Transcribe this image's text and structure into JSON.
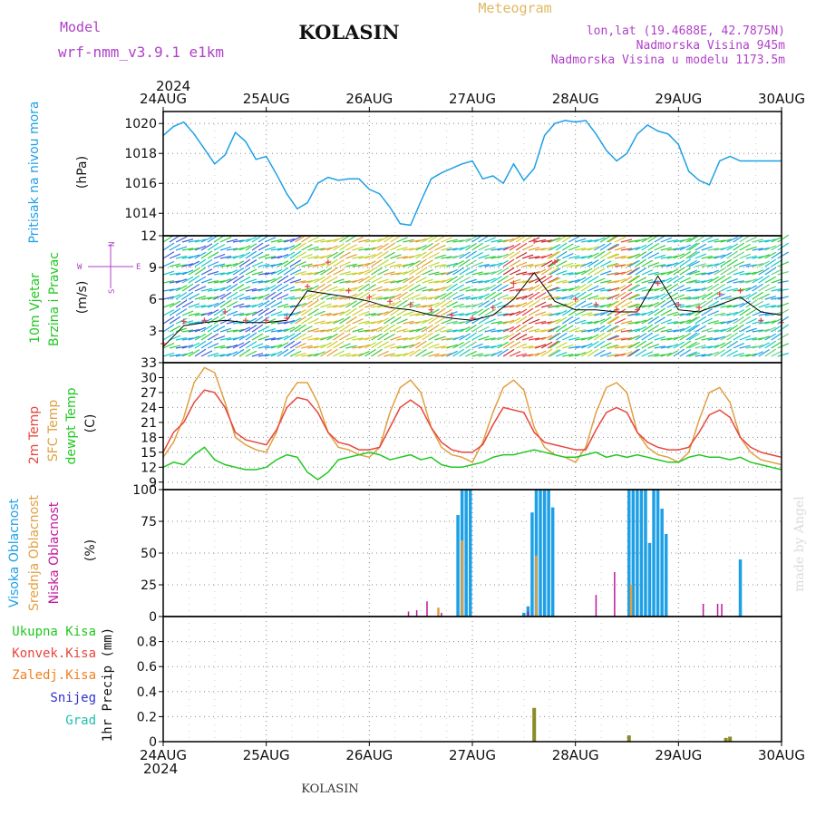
{
  "header": {
    "model_label": "Model",
    "model_name": "wrf-nmm_v3.9.1  e1km",
    "station": "KOLASIN",
    "meteogram": "Meteogram",
    "lonlat": "lon,lat (19.4688E, 42.7875N)",
    "altitude": "Nadmorska Visina 945m",
    "altitude_model": "Nadmorska Visina u modelu 1173.5m",
    "year": "2024",
    "footer_station": "KOLASIN",
    "watermark": "made by Angel"
  },
  "colors": {
    "pressure": "#1ea0e6",
    "temp2m": "#e8463c",
    "sfc": "#e0a040",
    "dewpt": "#22c822",
    "high_cloud": "#1ea0e6",
    "mid_cloud": "#e0a040",
    "low_cloud": "#c0189c",
    "total_precip": "#22c822",
    "conv_precip": "#e8463c",
    "frz_precip": "#f08020",
    "snow": "#3030d0",
    "hail": "#20c0b0",
    "model_purple": "#b040c8"
  },
  "chart_data": [
    {
      "type": "line",
      "panel": "pressure",
      "title": "",
      "ylabel": [
        "Pritisak na nivou mora",
        "(hPa)"
      ],
      "ylim": [
        1012.5,
        1020.8
      ],
      "yticks": [
        1014,
        1016,
        1018,
        1020
      ],
      "grid": true,
      "x_categories": [
        "24AUG",
        "25AUG",
        "26AUG",
        "27AUG",
        "28AUG",
        "29AUG",
        "30AUG"
      ],
      "x": [
        0,
        0.1,
        0.2,
        0.3,
        0.4,
        0.5,
        0.6,
        0.7,
        0.8,
        0.9,
        1.0,
        1.1,
        1.2,
        1.3,
        1.4,
        1.5,
        1.6,
        1.7,
        1.8,
        1.9,
        2.0,
        2.1,
        2.2,
        2.3,
        2.4,
        2.5,
        2.6,
        2.7,
        2.8,
        2.9,
        3.0,
        3.1,
        3.2,
        3.3,
        3.4,
        3.5,
        3.6,
        3.7,
        3.8,
        3.9,
        4.0,
        4.1,
        4.2,
        4.3,
        4.4,
        4.5,
        4.6,
        4.7,
        4.8,
        4.9,
        5.0,
        5.1,
        5.2,
        5.3,
        5.4,
        5.5,
        5.6,
        5.7,
        5.8,
        5.9,
        6.0
      ],
      "series": [
        {
          "values": [
            1019.2,
            1019.8,
            1020.1,
            1019.3,
            1018.3,
            1017.3,
            1017.9,
            1019.4,
            1018.8,
            1017.6,
            1017.8,
            1016.6,
            1015.3,
            1014.3,
            1014.7,
            1016.0,
            1016.4,
            1016.2,
            1016.3,
            1016.3,
            1015.6,
            1015.3,
            1014.4,
            1013.3,
            1013.2,
            1014.8,
            1016.3,
            1016.7,
            1017.0,
            1017.3,
            1017.5,
            1016.3,
            1016.5,
            1016.0,
            1017.3,
            1016.2,
            1017.0,
            1019.2,
            1020.0,
            1020.2,
            1020.1,
            1020.2,
            1019.3,
            1018.2,
            1017.5,
            1018.0,
            1019.3,
            1019.9,
            1019.5,
            1019.3,
            1018.6,
            1016.8,
            1016.2,
            1015.9,
            1017.5,
            1017.8,
            1017.5,
            1017.5,
            1017.5,
            1017.5,
            1017.5
          ]
        }
      ]
    },
    {
      "type": "line",
      "panel": "wind",
      "title": "",
      "ylabel": [
        "10m Vjetar",
        "Brzina i Pravac",
        "(m/s)"
      ],
      "ylim": [
        0,
        12
      ],
      "yticks": [
        3,
        6,
        9,
        12
      ],
      "grid": true,
      "x": [
        0,
        0.2,
        0.4,
        0.6,
        0.8,
        1.0,
        1.2,
        1.4,
        1.6,
        1.8,
        2.0,
        2.2,
        2.4,
        2.6,
        2.8,
        3.0,
        3.2,
        3.4,
        3.6,
        3.8,
        4.0,
        4.2,
        4.4,
        4.6,
        4.8,
        5.0,
        5.2,
        5.4,
        5.6,
        5.8,
        6.0
      ],
      "series": [
        {
          "name": "speed",
          "values": [
            1.5,
            3.5,
            3.8,
            4.0,
            3.8,
            3.8,
            4.0,
            6.8,
            6.5,
            6.2,
            5.8,
            5.2,
            5.0,
            4.5,
            4.2,
            4.0,
            4.5,
            6.0,
            8.5,
            5.8,
            5.0,
            5.0,
            4.8,
            4.8,
            8.2,
            5.0,
            4.8,
            5.5,
            6.2,
            4.8,
            4.5
          ]
        },
        {
          "name": "gust",
          "values": [
            1.8,
            3.9,
            4.0,
            4.8,
            4.0,
            4.0,
            4.2,
            7.2,
            9.5,
            6.8,
            6.2,
            5.8,
            5.5,
            5.0,
            4.5,
            4.2,
            5.2,
            7.5,
            11.5,
            9.5,
            6.0,
            5.5,
            5.0,
            5.0,
            7.5,
            5.5,
            5.2,
            6.5,
            6.8,
            4.0,
            3.8
          ]
        }
      ],
      "compass": {
        "n": "N",
        "s": "S",
        "e": "E",
        "w": "W"
      }
    },
    {
      "type": "line",
      "panel": "temperature",
      "title": "",
      "ylabel": [
        "2m Temp",
        "SFC Temp",
        "dewpt Temp",
        "(C)"
      ],
      "ylim": [
        7.5,
        33
      ],
      "yticks": [
        9,
        12,
        15,
        18,
        21,
        24,
        27,
        30,
        33
      ],
      "grid": true,
      "x": [
        0,
        0.1,
        0.2,
        0.3,
        0.4,
        0.5,
        0.6,
        0.7,
        0.8,
        0.9,
        1.0,
        1.1,
        1.2,
        1.3,
        1.4,
        1.5,
        1.6,
        1.7,
        1.8,
        1.9,
        2.0,
        2.1,
        2.2,
        2.3,
        2.4,
        2.5,
        2.6,
        2.7,
        2.8,
        2.9,
        3.0,
        3.1,
        3.2,
        3.3,
        3.4,
        3.5,
        3.6,
        3.7,
        3.8,
        3.9,
        4.0,
        4.1,
        4.2,
        4.3,
        4.4,
        4.5,
        4.6,
        4.7,
        4.8,
        4.9,
        5.0,
        5.1,
        5.2,
        5.3,
        5.4,
        5.5,
        5.6,
        5.7,
        5.8,
        5.9,
        6.0
      ],
      "series": [
        {
          "name": "2m Temp",
          "values": [
            15,
            19,
            21,
            25,
            27.5,
            27,
            24,
            19,
            17.5,
            17,
            16.5,
            19.5,
            24,
            26,
            25.5,
            23,
            19,
            17,
            16.5,
            15.5,
            15.5,
            16,
            20,
            24,
            25.5,
            24,
            20,
            17,
            15.5,
            15,
            15,
            16.5,
            20.5,
            24,
            23.5,
            23,
            19,
            17,
            16.5,
            16,
            15.5,
            15.5,
            19.5,
            23,
            24,
            23,
            19,
            17,
            16,
            15.5,
            15.5,
            16,
            19,
            22.5,
            23.5,
            22,
            18,
            16,
            15,
            14.5,
            14
          ]
        },
        {
          "name": "SFC Temp",
          "values": [
            14,
            17,
            22,
            29,
            32,
            31,
            25,
            18,
            16.5,
            15.5,
            15,
            19,
            26,
            29,
            29,
            25,
            19,
            16,
            15.5,
            14.5,
            14,
            16,
            23,
            28,
            29.5,
            27,
            20,
            16,
            14.5,
            14,
            13,
            17,
            23,
            28,
            29.5,
            27.5,
            20,
            16,
            14.5,
            14,
            13,
            16,
            23,
            28,
            29,
            27,
            19,
            16,
            14.5,
            14,
            13,
            15,
            21.5,
            27,
            28,
            25,
            18,
            15,
            13.5,
            13,
            12.5
          ]
        },
        {
          "name": "dewpt Temp",
          "values": [
            12,
            13,
            12.5,
            14.5,
            16,
            13.5,
            12.5,
            12,
            11.5,
            11.5,
            12,
            13.5,
            14.5,
            14,
            11,
            9.5,
            11,
            13.5,
            14,
            14.5,
            15,
            14.5,
            13.5,
            14,
            14.5,
            13.5,
            14,
            12.5,
            12,
            12,
            12.5,
            13,
            14,
            14.5,
            14.5,
            15,
            15.5,
            15,
            14.5,
            14,
            14,
            14.5,
            15,
            14,
            14.5,
            14,
            14.5,
            14,
            13.5,
            13,
            13,
            14,
            14.5,
            14,
            14,
            13.5,
            14,
            13,
            12.5,
            12,
            11.5
          ]
        }
      ]
    },
    {
      "type": "bar",
      "panel": "cloud",
      "title": "",
      "ylabel": [
        "Visoka Oblacnost",
        "Srednja Oblacnost",
        "Niska Oblacnost",
        "(%)"
      ],
      "ylim": [
        0,
        100
      ],
      "yticks": [
        0,
        25,
        50,
        75,
        100
      ],
      "grid": true,
      "series": [
        {
          "name": "Visoka Oblacnost",
          "x": [
            2.86,
            2.9,
            2.94,
            2.98,
            3.5,
            3.54,
            3.58,
            3.62,
            3.66,
            3.7,
            3.74,
            3.78,
            4.52,
            4.56,
            4.6,
            4.64,
            4.68,
            4.72,
            4.76,
            4.8,
            4.84,
            4.88,
            4.92,
            5.6
          ],
          "values": [
            80,
            100,
            100,
            100,
            3,
            8,
            82,
            100,
            100,
            100,
            100,
            86,
            100,
            100,
            100,
            100,
            100,
            58,
            100,
            100,
            85,
            65,
            0,
            45
          ]
        },
        {
          "name": "Srednja Oblacnost",
          "x": [
            2.67,
            2.9,
            3.62,
            4.54
          ],
          "values": [
            7,
            60,
            48,
            25
          ]
        },
        {
          "name": "Niska Oblacnost",
          "x": [
            2.38,
            2.46,
            2.56,
            2.7,
            3.54,
            4.2,
            4.38,
            5.24,
            5.38,
            5.42
          ],
          "values": [
            4,
            5,
            12,
            3,
            4,
            17,
            35,
            10,
            10,
            10
          ]
        }
      ]
    },
    {
      "type": "bar",
      "panel": "precip",
      "title": "",
      "ylabel": [
        "Ukupna Kisa",
        "Konvek.Kisa",
        "Zaledj.Kisa",
        "Snijeg",
        "Grad",
        "1hr Precip (mm)"
      ],
      "ylim": [
        0,
        1
      ],
      "yticks": [
        0,
        0.2,
        0.4,
        0.6,
        0.8
      ],
      "grid": true,
      "series": [
        {
          "name": "1hr Precip",
          "x": [
            3.6,
            4.52,
            5.46,
            5.5
          ],
          "values": [
            0.27,
            0.05,
            0.03,
            0.04
          ]
        }
      ]
    }
  ]
}
